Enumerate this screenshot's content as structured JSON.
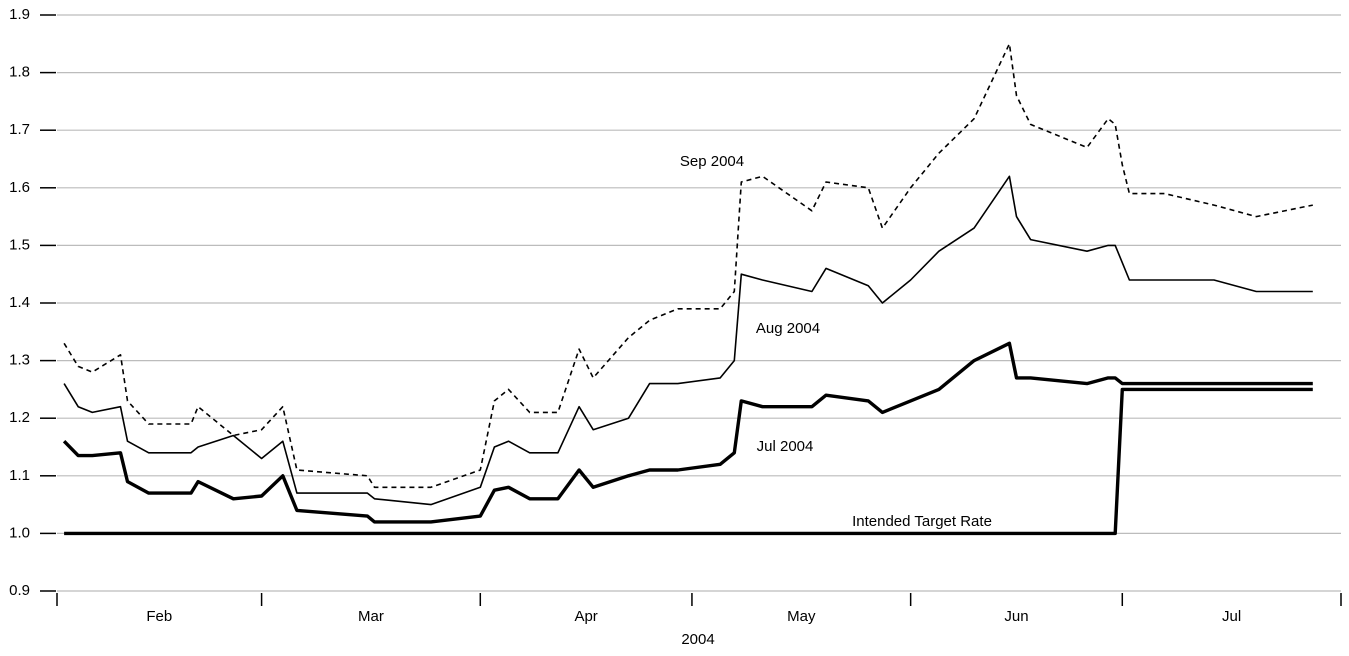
{
  "chart_data": {
    "type": "line",
    "xlabel": "2004",
    "x": [
      1,
      3,
      5,
      9,
      10,
      13,
      19,
      20,
      25,
      29,
      32,
      34,
      44,
      45,
      53,
      60,
      62,
      64,
      67,
      71,
      74,
      76,
      81,
      84,
      88,
      94,
      96,
      97,
      100,
      107,
      109,
      115,
      117,
      121,
      125,
      130,
      135,
      136,
      138,
      146,
      149,
      150,
      151,
      152,
      157,
      164,
      170,
      178
    ],
    "xlim": [
      0,
      182
    ],
    "xticks": [
      0,
      29,
      60,
      90,
      121,
      151,
      182
    ],
    "month_labels": [
      "Feb",
      "Mar",
      "Apr",
      "May",
      "Jun",
      "Jul"
    ],
    "ylim": [
      0.9,
      1.9
    ],
    "yticks": [
      0.9,
      1.0,
      1.1,
      1.2,
      1.3,
      1.4,
      1.5,
      1.6,
      1.7,
      1.8,
      1.9
    ],
    "ytick_labels": [
      "0.9",
      "1.0",
      "1.1",
      "1.2",
      "1.3",
      "1.4",
      "1.5",
      "1.6",
      "1.7",
      "1.8",
      "1.9"
    ],
    "grid": true,
    "series": [
      {
        "name": "Sep 2004",
        "color": "#000000",
        "line_style": "dashed",
        "values": [
          1.33,
          1.29,
          1.28,
          1.31,
          1.23,
          1.19,
          1.19,
          1.22,
          1.17,
          1.18,
          1.22,
          1.11,
          1.1,
          1.08,
          1.08,
          1.11,
          1.23,
          1.25,
          1.21,
          1.21,
          1.32,
          1.27,
          1.34,
          1.37,
          1.39,
          1.39,
          1.42,
          1.61,
          1.62,
          1.56,
          1.61,
          1.6,
          1.53,
          1.6,
          1.66,
          1.72,
          1.85,
          1.76,
          1.71,
          1.67,
          1.72,
          1.71,
          1.64,
          1.59,
          1.59,
          1.57,
          1.55,
          1.57
        ]
      },
      {
        "name": "Aug 2004",
        "color": "#000000",
        "line_style": "solid",
        "values": [
          1.26,
          1.22,
          1.21,
          1.22,
          1.16,
          1.14,
          1.14,
          1.15,
          1.17,
          1.13,
          1.16,
          1.07,
          1.07,
          1.06,
          1.05,
          1.08,
          1.15,
          1.16,
          1.14,
          1.14,
          1.22,
          1.18,
          1.2,
          1.26,
          1.26,
          1.27,
          1.3,
          1.45,
          1.44,
          1.42,
          1.46,
          1.43,
          1.4,
          1.44,
          1.49,
          1.53,
          1.62,
          1.55,
          1.51,
          1.49,
          1.5,
          1.5,
          1.47,
          1.44,
          1.44,
          1.44,
          1.42,
          1.42
        ]
      },
      {
        "name": "Jul 2004",
        "color": "#000000",
        "line_style": "bold",
        "values": [
          1.16,
          1.135,
          1.135,
          1.14,
          1.09,
          1.07,
          1.07,
          1.09,
          1.06,
          1.065,
          1.1,
          1.04,
          1.03,
          1.02,
          1.02,
          1.03,
          1.075,
          1.08,
          1.06,
          1.06,
          1.11,
          1.08,
          1.1,
          1.11,
          1.11,
          1.12,
          1.14,
          1.23,
          1.22,
          1.22,
          1.24,
          1.23,
          1.21,
          1.23,
          1.25,
          1.3,
          1.33,
          1.27,
          1.27,
          1.26,
          1.27,
          1.27,
          1.26,
          1.26,
          1.26,
          1.26,
          1.26,
          1.26
        ]
      },
      {
        "name": "Intended Target Rate",
        "color": "#000000",
        "line_style": "bold",
        "values": [
          1,
          1,
          1,
          1,
          1,
          1,
          1,
          1,
          1,
          1,
          1,
          1,
          1,
          1,
          1,
          1,
          1,
          1,
          1,
          1,
          1,
          1,
          1,
          1,
          1,
          1,
          1,
          1,
          1,
          1,
          1,
          1,
          1,
          1,
          1,
          1,
          1,
          1,
          1,
          1,
          1,
          1,
          1.25,
          1.25,
          1.25,
          1.25,
          1.25,
          1.25
        ]
      }
    ]
  }
}
